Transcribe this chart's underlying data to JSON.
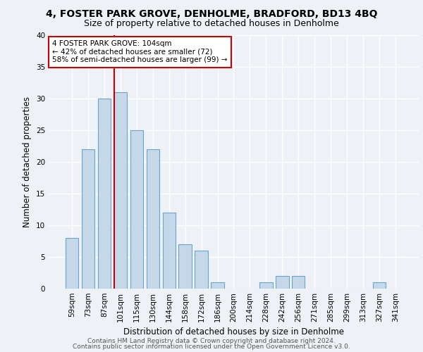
{
  "title": "4, FOSTER PARK GROVE, DENHOLME, BRADFORD, BD13 4BQ",
  "subtitle": "Size of property relative to detached houses in Denholme",
  "xlabel": "Distribution of detached houses by size in Denholme",
  "ylabel": "Number of detached properties",
  "categories": [
    "59sqm",
    "73sqm",
    "87sqm",
    "101sqm",
    "115sqm",
    "130sqm",
    "144sqm",
    "158sqm",
    "172sqm",
    "186sqm",
    "200sqm",
    "214sqm",
    "228sqm",
    "242sqm",
    "256sqm",
    "271sqm",
    "285sqm",
    "299sqm",
    "313sqm",
    "327sqm",
    "341sqm"
  ],
  "values": [
    8,
    22,
    30,
    31,
    25,
    22,
    12,
    7,
    6,
    1,
    0,
    0,
    1,
    2,
    2,
    0,
    0,
    0,
    0,
    1,
    0
  ],
  "bar_color": "#c5d8ea",
  "bar_edge_color": "#6aa3c8",
  "property_line_bin": 3,
  "annotation_text": "4 FOSTER PARK GROVE: 104sqm\n← 42% of detached houses are smaller (72)\n58% of semi-detached houses are larger (99) →",
  "annotation_box_color": "#ffffff",
  "annotation_box_edge_color": "#cc0000",
  "vline_color": "#cc0000",
  "footer_line1": "Contains HM Land Registry data © Crown copyright and database right 2024.",
  "footer_line2": "Contains public sector information licensed under the Open Government Licence v3.0.",
  "ylim": [
    0,
    40
  ],
  "yticks": [
    0,
    5,
    10,
    15,
    20,
    25,
    30,
    35,
    40
  ],
  "background_color": "#eef2f7",
  "grid_color": "#ffffff",
  "title_fontsize": 10,
  "subtitle_fontsize": 9,
  "axis_label_fontsize": 8.5,
  "tick_fontsize": 7.5,
  "annotation_fontsize": 7.5,
  "footer_fontsize": 6.5
}
